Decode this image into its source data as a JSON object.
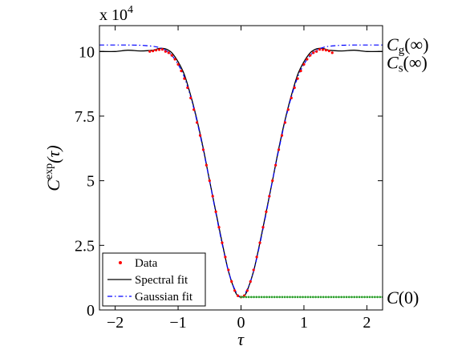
{
  "chart_data": {
    "type": "line",
    "xlabel": "τ",
    "ylabel_main": "C",
    "ylabel_sup": "exp",
    "ylabel_arg": "(τ)",
    "exponent_label": "x 10",
    "exponent_power": "4",
    "xlim": [
      -2.25,
      2.25
    ],
    "ylim": [
      0,
      11
    ],
    "x_ticks": [
      -2,
      -1,
      0,
      1,
      2
    ],
    "x_tick_labels": [
      "−2",
      "−1",
      "0",
      "1",
      "2"
    ],
    "y_ticks": [
      0,
      2.5,
      5,
      7.5,
      10
    ],
    "y_tick_labels": [
      "0",
      "2.5",
      "5",
      "7.5",
      "10"
    ],
    "grid": false,
    "legend_position": "bottom-left",
    "series": [
      {
        "name": "Data",
        "style": "dots",
        "color": "#ff0000",
        "x": [
          -1.45,
          -1.4,
          -1.35,
          -1.3,
          -1.25,
          -1.2,
          -1.15,
          -1.1,
          -1.05,
          -1.0,
          -0.95,
          -0.9,
          -0.85,
          -0.8,
          -0.75,
          -0.7,
          -0.65,
          -0.6,
          -0.55,
          -0.5,
          -0.45,
          -0.4,
          -0.35,
          -0.3,
          -0.25,
          -0.2,
          -0.15,
          -0.1,
          -0.05,
          0.0,
          0.05,
          0.1,
          0.15,
          0.2,
          0.25,
          0.3,
          0.35,
          0.4,
          0.45,
          0.5,
          0.55,
          0.6,
          0.65,
          0.7,
          0.75,
          0.8,
          0.85,
          0.9,
          0.95,
          1.0,
          1.05,
          1.1,
          1.15,
          1.2,
          1.25,
          1.3,
          1.35,
          1.4,
          1.45
        ],
        "y": [
          10.0,
          10.02,
          10.05,
          10.07,
          10.08,
          10.0,
          9.95,
          9.85,
          9.7,
          9.5,
          9.25,
          8.95,
          8.6,
          8.2,
          7.75,
          7.25,
          6.75,
          6.2,
          5.6,
          5.0,
          4.4,
          3.8,
          3.2,
          2.6,
          2.05,
          1.55,
          1.1,
          0.75,
          0.55,
          0.5,
          0.55,
          0.75,
          1.1,
          1.55,
          2.05,
          2.6,
          3.2,
          3.8,
          4.4,
          5.0,
          5.6,
          6.2,
          6.75,
          7.25,
          7.75,
          8.2,
          8.6,
          8.95,
          9.25,
          9.5,
          9.7,
          9.85,
          9.95,
          10.0,
          10.08,
          10.07,
          10.05,
          10.02,
          9.95
        ]
      },
      {
        "name": "Spectral fit",
        "style": "solid",
        "color": "#000000",
        "x": [
          -2.25,
          -2.0,
          -1.8,
          -1.6,
          -1.4,
          -1.3,
          -1.2,
          -1.1,
          -1.0,
          -0.9,
          -0.8,
          -0.7,
          -0.6,
          -0.5,
          -0.4,
          -0.3,
          -0.2,
          -0.1,
          -0.05,
          0.0,
          0.05,
          0.1,
          0.2,
          0.3,
          0.4,
          0.5,
          0.6,
          0.7,
          0.8,
          0.9,
          1.0,
          1.1,
          1.2,
          1.3,
          1.4,
          1.6,
          1.8,
          2.0,
          2.25
        ],
        "y": [
          10.0,
          10.0,
          10.05,
          10.02,
          10.05,
          10.12,
          10.1,
          9.95,
          9.6,
          9.1,
          8.3,
          7.35,
          6.25,
          5.0,
          3.8,
          2.6,
          1.5,
          0.75,
          0.55,
          0.5,
          0.55,
          0.75,
          1.5,
          2.6,
          3.8,
          5.0,
          6.25,
          7.35,
          8.3,
          9.1,
          9.6,
          9.95,
          10.1,
          10.12,
          10.05,
          10.02,
          10.05,
          10.0,
          10.0
        ]
      },
      {
        "name": "Gaussian fit",
        "style": "dashdot",
        "color": "#0000ff",
        "x": [
          -2.25,
          -2.0,
          -1.8,
          -1.6,
          -1.4,
          -1.3,
          -1.2,
          -1.1,
          -1.0,
          -0.9,
          -0.8,
          -0.7,
          -0.6,
          -0.5,
          -0.4,
          -0.3,
          -0.2,
          -0.1,
          0.0,
          0.1,
          0.2,
          0.3,
          0.4,
          0.5,
          0.6,
          0.7,
          0.8,
          0.9,
          1.0,
          1.1,
          1.2,
          1.3,
          1.4,
          1.6,
          1.8,
          2.0,
          2.25
        ],
        "y": [
          10.25,
          10.25,
          10.25,
          10.24,
          10.2,
          10.15,
          10.05,
          9.85,
          9.5,
          9.0,
          8.25,
          7.3,
          6.2,
          5.0,
          3.75,
          2.55,
          1.5,
          0.8,
          0.5,
          0.8,
          1.5,
          2.55,
          3.75,
          5.0,
          6.2,
          7.3,
          8.25,
          9.0,
          9.5,
          9.85,
          10.05,
          10.15,
          10.2,
          10.24,
          10.25,
          10.25,
          10.25
        ]
      },
      {
        "name": "",
        "style": "green-dots",
        "color": "#2ca02c",
        "x_range": [
          0.0,
          2.25
        ],
        "y": 0.5
      }
    ],
    "annotations": [
      {
        "main": "C",
        "sub": "g",
        "arg": "(∞)",
        "y": 10.25
      },
      {
        "main": "C",
        "sub": "s",
        "arg": "(∞)",
        "y": 10.0
      },
      {
        "main": "C",
        "sub": "",
        "arg": "(0)",
        "y": 0.5
      }
    ]
  }
}
